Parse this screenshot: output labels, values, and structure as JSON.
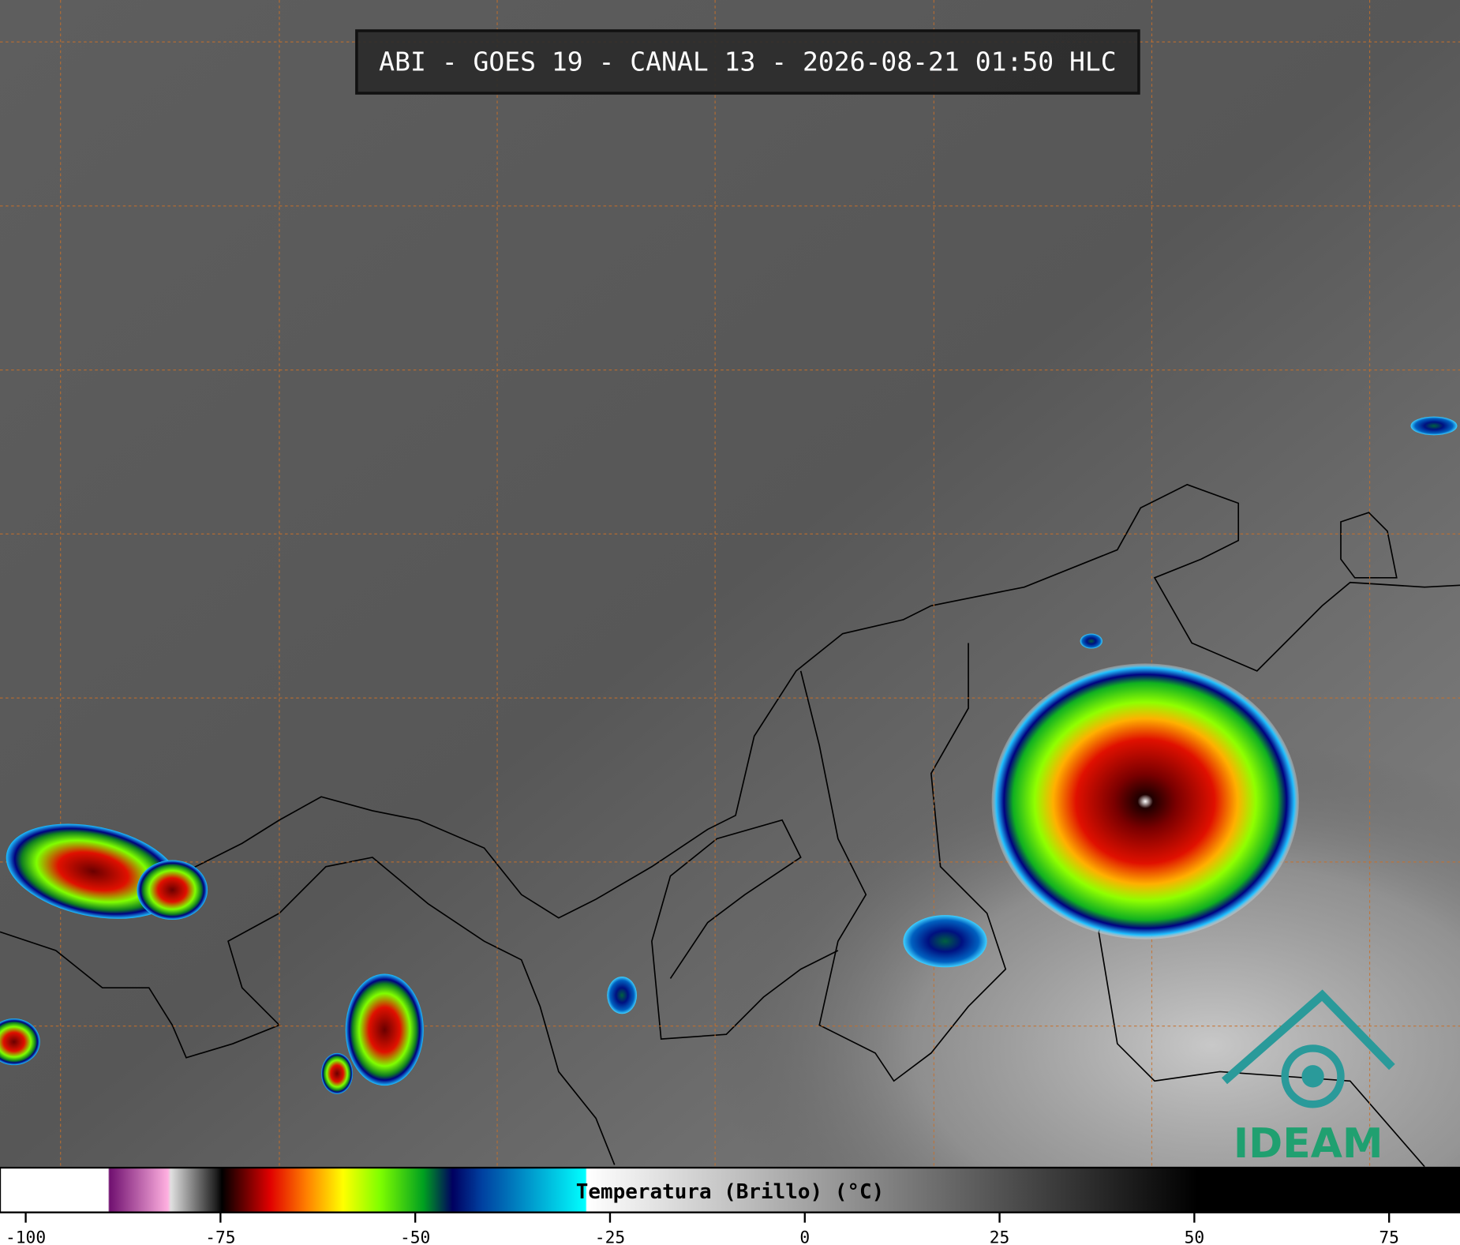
{
  "title": "ABI - GOES 19 - CANAL 13 - 2026-08-21 01:50 HLC",
  "colorbar": {
    "label": "Temperatura (Brillo) (°C)",
    "lim": [
      -103.3,
      84.1
    ],
    "ticks": [
      -100,
      -75,
      -50,
      -25,
      0,
      25,
      50,
      75
    ]
  },
  "logo": "IDEAM"
}
